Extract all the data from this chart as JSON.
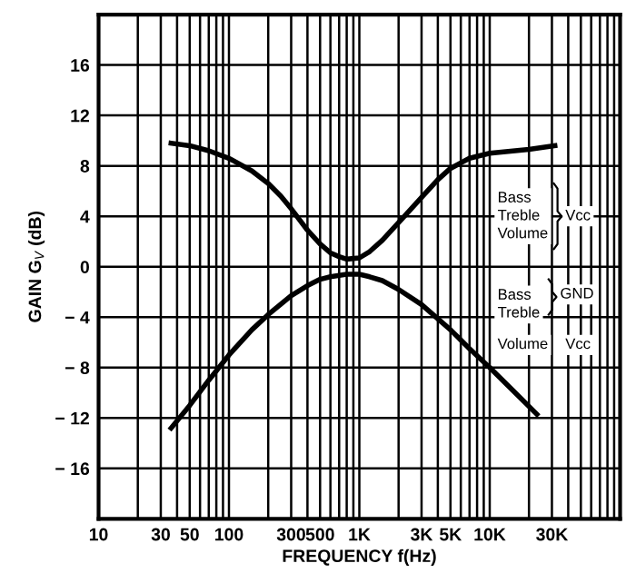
{
  "chart_data": {
    "type": "line",
    "xlabel": "FREQUENCY f(Hz)",
    "ylabel": "GAIN G$_{V}$ (dB)",
    "log": "x",
    "grid": true,
    "marker": "none",
    "line_style": "solid",
    "xlim": [
      10,
      100000
    ],
    "ylim": [
      -20,
      20
    ],
    "xticks": [
      10,
      {
        "value": 20,
        "label": null
      },
      {
        "value": 30,
        "label": "30"
      },
      {
        "value": 40,
        "label": null
      },
      50,
      {
        "value": 60,
        "label": null
      },
      {
        "value": 70,
        "label": null
      },
      {
        "value": 80,
        "label": null
      },
      {
        "value": 90,
        "label": null
      },
      100,
      {
        "value": 200,
        "label": null
      },
      300,
      {
        "value": 400,
        "label": null
      },
      500,
      {
        "value": 600,
        "label": null
      },
      {
        "value": 700,
        "label": null
      },
      {
        "value": 800,
        "label": null
      },
      {
        "value": 900,
        "label": null
      },
      {
        "value": 1000,
        "label": "1K"
      },
      {
        "value": 2000,
        "label": null
      },
      {
        "value": 3000,
        "label": "3K"
      },
      {
        "value": 4000,
        "label": null
      },
      {
        "value": 5000,
        "label": "5K"
      },
      {
        "value": 6000,
        "label": null
      },
      {
        "value": 7000,
        "label": null
      },
      {
        "value": 8000,
        "label": null
      },
      {
        "value": 9000,
        "label": null
      },
      {
        "value": 10000,
        "label": "10K"
      },
      {
        "value": 20000,
        "label": null
      },
      {
        "value": 30000,
        "label": "30K"
      },
      {
        "value": 40000,
        "label": null
      },
      {
        "value": 50000,
        "label": null
      },
      {
        "value": 60000,
        "label": null
      },
      {
        "value": 70000,
        "label": null
      },
      {
        "value": 80000,
        "label": null
      },
      {
        "value": 90000,
        "label": null
      }
    ],
    "yticks": [
      {
        "value": -16,
        "label": "− 16"
      },
      {
        "value": -12,
        "label": "− 12"
      },
      {
        "value": -8,
        "label": "− 8"
      },
      {
        "value": -4,
        "label": "− 4"
      },
      0,
      4,
      8,
      12,
      16
    ],
    "series": [
      {
        "color": "#000000",
        "x": [
          36,
          50,
          70,
          100,
          150,
          200,
          250,
          300,
          400,
          500,
          600,
          700,
          800,
          1000,
          1200,
          1500,
          2000,
          2500,
          3000,
          4000,
          5000,
          7000,
          10000,
          20000,
          31600
        ],
        "values": [
          9.8,
          9.6,
          9.2,
          8.6,
          7.6,
          6.6,
          5.6,
          4.6,
          2.9,
          1.8,
          1.1,
          0.8,
          0.6,
          0.7,
          1.2,
          2.1,
          3.5,
          4.6,
          5.5,
          6.9,
          7.8,
          8.6,
          9.0,
          9.3,
          9.6
        ]
      },
      {
        "color": "#000000",
        "x": [
          36,
          50,
          70,
          100,
          150,
          200,
          300,
          400,
          500,
          600,
          800,
          1000,
          1200,
          1500,
          2000,
          3000,
          5000,
          7000,
          10000,
          15000,
          23000
        ],
        "values": [
          -12.8,
          -11,
          -9,
          -7,
          -5,
          -3.8,
          -2.3,
          -1.5,
          -1.0,
          -0.8,
          -0.6,
          -0.6,
          -0.8,
          -1.1,
          -1.8,
          -3.0,
          -5,
          -6.5,
          -8,
          -9.8,
          -11.7
        ]
      }
    ],
    "annotations": [
      "Bass\nTreble\nVolume",
      "Vcc",
      "Bass\nTreble",
      "GND",
      "Volume",
      "Vcc"
    ]
  }
}
